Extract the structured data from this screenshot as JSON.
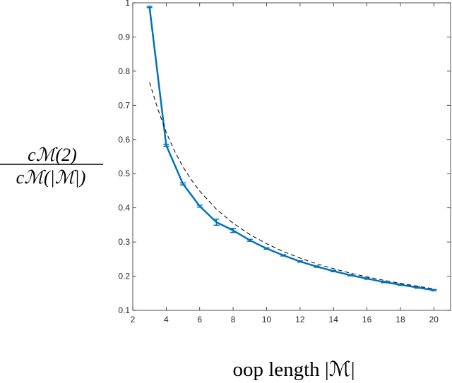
{
  "chart_data": {
    "type": "line",
    "xlabel": "oop length |ℳ|",
    "ylabel": {
      "numerator": "cℳ(2)",
      "denominator": "cℳ(|ℳ|)"
    },
    "xlim": [
      2,
      21
    ],
    "ylim": [
      0.1,
      1
    ],
    "xticks": [
      2,
      4,
      6,
      8,
      10,
      12,
      14,
      16,
      18,
      20
    ],
    "yticks": [
      0.1,
      0.2,
      0.3,
      0.4,
      0.5,
      0.6,
      0.7,
      0.8,
      0.9,
      1
    ],
    "ytick_labels": [
      "0.1",
      "0.2",
      "0.3",
      "0.4",
      "0.5",
      "0.6",
      "0.7",
      "0.8",
      "0.9",
      "1"
    ],
    "grid": false,
    "series": [
      {
        "style": "solid-with-errorbars",
        "color": "#0072BD",
        "x": [
          3,
          4,
          5,
          6,
          7,
          8,
          9,
          10,
          11,
          12,
          13,
          14,
          15,
          16,
          17,
          18,
          19,
          20
        ],
        "y": [
          0.988,
          0.583,
          0.47,
          0.405,
          0.358,
          0.334,
          0.305,
          0.281,
          0.261,
          0.243,
          0.228,
          0.215,
          0.203,
          0.193,
          0.183,
          0.175,
          0.167,
          0.159
        ],
        "err": [
          0.002,
          0.003,
          0.003,
          0.003,
          0.009,
          0.006,
          0.003,
          0.002,
          0.002,
          0.002,
          0.002,
          0.002,
          0.002,
          0.002,
          0.002,
          0.002,
          0.002,
          0.002
        ]
      },
      {
        "style": "dashed",
        "color": "#000000",
        "x": [
          3,
          3.5,
          4,
          4.5,
          5,
          5.5,
          6,
          7,
          8,
          9,
          10,
          11,
          12,
          13,
          14,
          15,
          16,
          17,
          18,
          19,
          20
        ],
        "y": [
          0.767,
          0.689,
          0.621,
          0.566,
          0.52,
          0.482,
          0.449,
          0.396,
          0.355,
          0.322,
          0.295,
          0.272,
          0.253,
          0.236,
          0.222,
          0.209,
          0.198,
          0.188,
          0.179,
          0.171,
          0.163
        ]
      }
    ]
  }
}
